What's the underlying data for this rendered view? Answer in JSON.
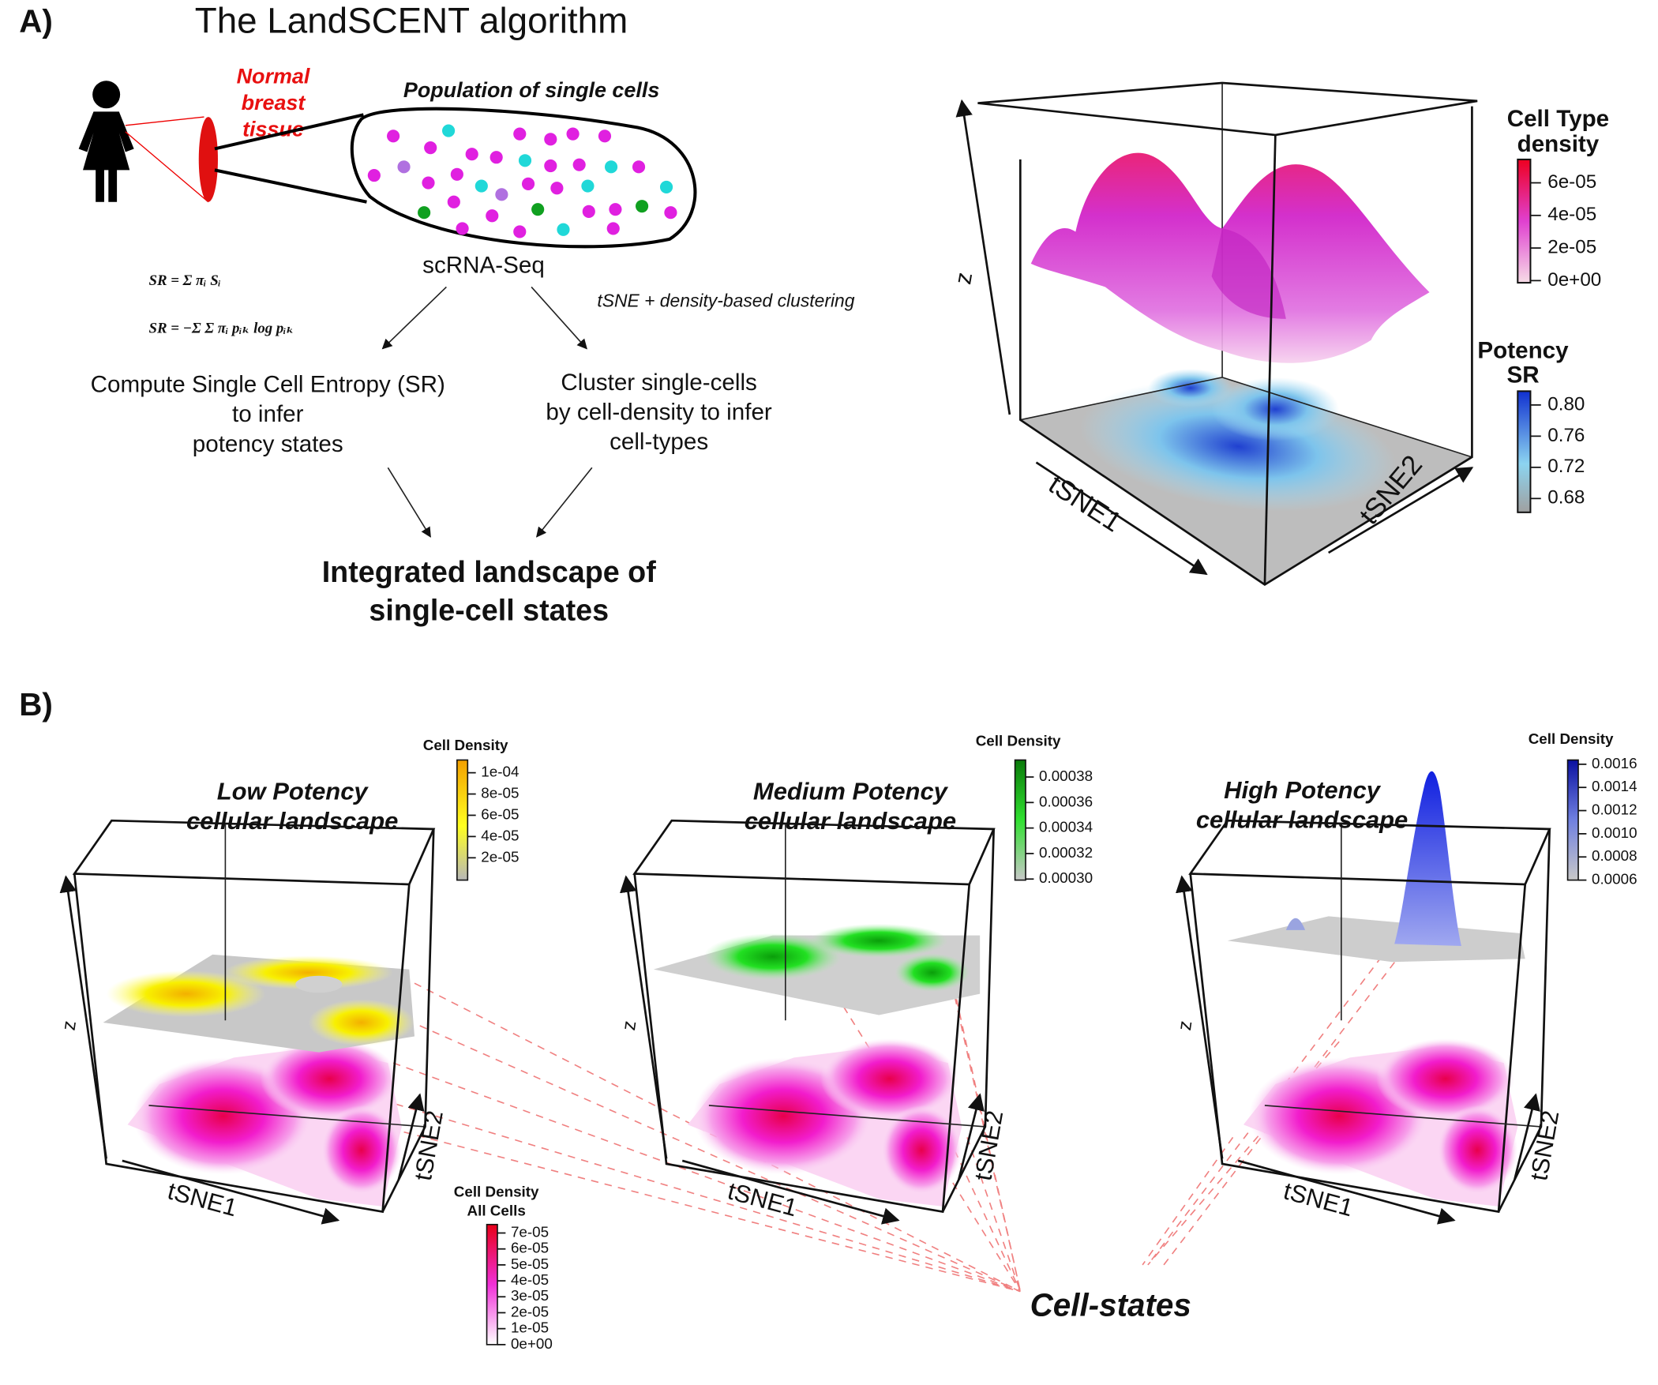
{
  "panel_a": {
    "label": "A)",
    "title": "The LandSCENT algorithm",
    "tissue_label": [
      "Normal",
      "breast",
      "tissue"
    ],
    "population_label": "Population of single cells",
    "method": "scRNA-Seq",
    "formulas": [
      "SR = Σ πᵢ Sᵢ",
      "SR = −Σ Σ πᵢ pᵢₖ log pᵢₖ"
    ],
    "clustering_note": "tSNE + density-based clustering",
    "entropy_step": [
      "Compute Single Cell Entropy (SR)",
      "to infer",
      "potency states"
    ],
    "cluster_step": [
      "Cluster single-cells",
      "by cell-density to infer",
      "cell-types"
    ],
    "result": [
      "Integrated landscape of",
      "single-cell states"
    ],
    "landscape": {
      "z_label": "z",
      "x_label": "tSNE1",
      "y_label": "tSNE2",
      "density_legend": {
        "title": [
          "Cell Type",
          "density"
        ],
        "labels": [
          "6e-05",
          "4e-05",
          "2e-05",
          "0e+00"
        ]
      },
      "potency_legend": {
        "title": [
          "Potency",
          "SR"
        ],
        "labels": [
          "0.80",
          "0.76",
          "0.72",
          "0.68"
        ]
      }
    }
  },
  "panel_b": {
    "label": "B)",
    "landscapes": [
      {
        "title": [
          "Low Potency",
          "cellular landscape"
        ],
        "legend_title": "Cell Density",
        "legend_labels": [
          "1e-04",
          "8e-05",
          "6e-05",
          "4e-05",
          "2e-05"
        ],
        "z_label": "z",
        "x_label": "tSNE1",
        "y_label": "tSNE2"
      },
      {
        "title": [
          "Medium Potency",
          "cellular landscape"
        ],
        "legend_title": "Cell Density",
        "legend_labels": [
          "0.00038",
          "0.00036",
          "0.00034",
          "0.00032",
          "0.00030"
        ],
        "z_label": "z",
        "x_label": "tSNE1",
        "y_label": "tSNE2"
      },
      {
        "title": [
          "High Potency",
          "cellular landscape"
        ],
        "legend_title": "Cell Density",
        "legend_labels": [
          "0.0016",
          "0.0014",
          "0.0012",
          "0.0010",
          "0.0008",
          "0.0006"
        ],
        "z_label": "z",
        "x_label": "tSNE1",
        "y_label": "tSNE2"
      }
    ],
    "all_cells_legend": {
      "title": [
        "Cell Density",
        "All Cells"
      ],
      "labels": [
        "7e-05",
        "6e-05",
        "5e-05",
        "4e-05",
        "3e-05",
        "2e-05",
        "1e-05",
        "0e+00"
      ]
    },
    "cell_states_label": "Cell-states"
  }
}
